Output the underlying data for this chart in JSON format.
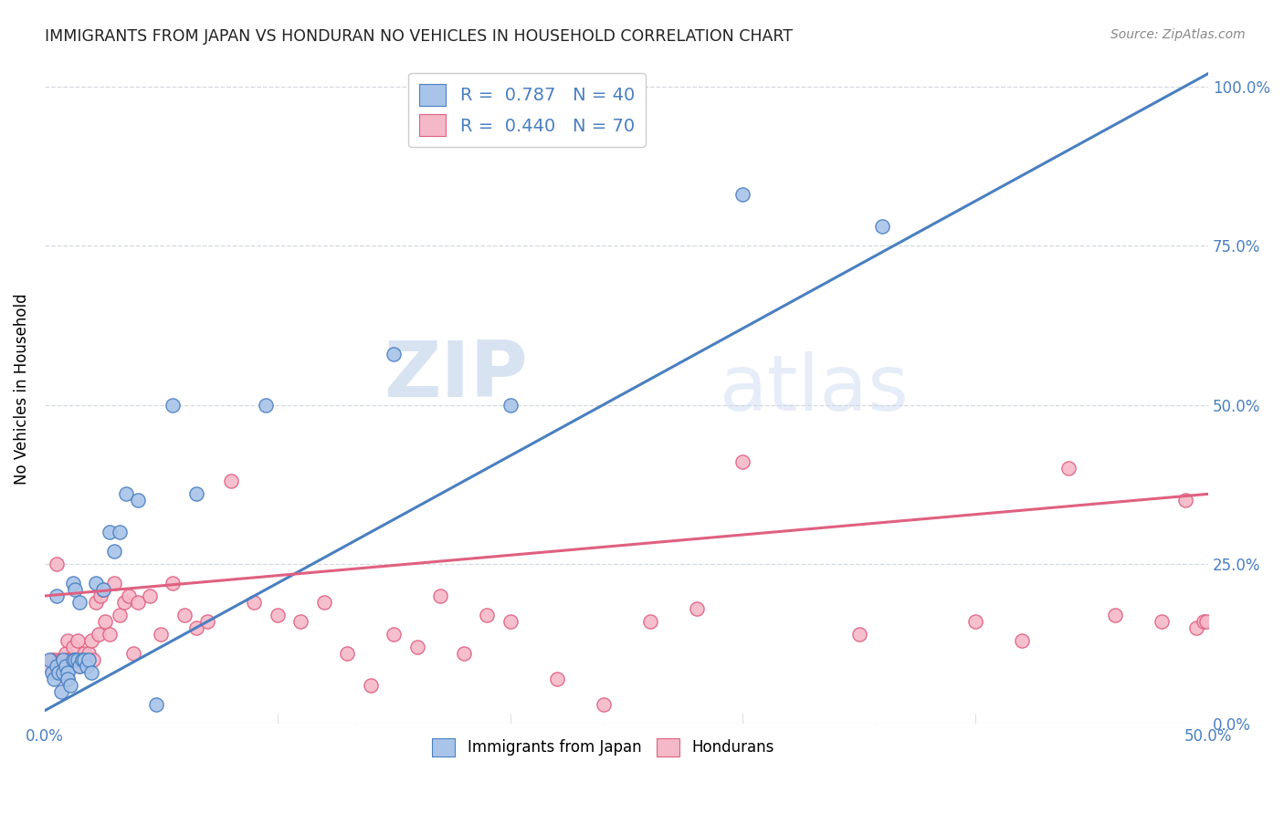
{
  "title": "IMMIGRANTS FROM JAPAN VS HONDURAN NO VEHICLES IN HOUSEHOLD CORRELATION CHART",
  "source": "Source: ZipAtlas.com",
  "ylabel": "No Vehicles in Household",
  "xlim": [
    0.0,
    0.5
  ],
  "ylim": [
    0.0,
    1.05
  ],
  "blue_r": 0.787,
  "blue_n": 40,
  "pink_r": 0.44,
  "pink_n": 70,
  "blue_color": "#A8C4E8",
  "pink_color": "#F5B8C8",
  "blue_line_color": "#4A7FC1",
  "pink_line_color": "#E06080",
  "watermark_zip": "ZIP",
  "watermark_atlas": "atlas",
  "legend_items": [
    "Immigrants from Japan",
    "Hondurans"
  ],
  "blue_line_x0": 0.0,
  "blue_line_y0": 0.02,
  "blue_line_x1": 0.5,
  "blue_line_y1": 1.02,
  "pink_line_x0": 0.0,
  "pink_line_y0": 0.2,
  "pink_line_x1": 0.5,
  "pink_line_y1": 0.36,
  "blue_scatter_x": [
    0.002,
    0.003,
    0.004,
    0.005,
    0.005,
    0.006,
    0.007,
    0.008,
    0.008,
    0.009,
    0.01,
    0.01,
    0.011,
    0.012,
    0.012,
    0.013,
    0.013,
    0.014,
    0.015,
    0.015,
    0.016,
    0.017,
    0.018,
    0.019,
    0.02,
    0.022,
    0.025,
    0.028,
    0.03,
    0.032,
    0.035,
    0.04,
    0.048,
    0.055,
    0.065,
    0.095,
    0.15,
    0.2,
    0.3,
    0.36
  ],
  "blue_scatter_y": [
    0.1,
    0.08,
    0.07,
    0.09,
    0.2,
    0.08,
    0.05,
    0.08,
    0.1,
    0.09,
    0.08,
    0.07,
    0.06,
    0.1,
    0.22,
    0.1,
    0.21,
    0.1,
    0.09,
    0.19,
    0.1,
    0.1,
    0.09,
    0.1,
    0.08,
    0.22,
    0.21,
    0.3,
    0.27,
    0.3,
    0.36,
    0.35,
    0.03,
    0.5,
    0.36,
    0.5,
    0.58,
    0.5,
    0.83,
    0.78
  ],
  "pink_scatter_x": [
    0.002,
    0.003,
    0.004,
    0.005,
    0.005,
    0.006,
    0.007,
    0.008,
    0.009,
    0.01,
    0.01,
    0.011,
    0.012,
    0.013,
    0.014,
    0.015,
    0.016,
    0.017,
    0.018,
    0.019,
    0.02,
    0.021,
    0.022,
    0.023,
    0.024,
    0.025,
    0.026,
    0.028,
    0.03,
    0.032,
    0.034,
    0.036,
    0.038,
    0.04,
    0.045,
    0.05,
    0.055,
    0.06,
    0.065,
    0.07,
    0.08,
    0.09,
    0.1,
    0.11,
    0.12,
    0.13,
    0.14,
    0.15,
    0.16,
    0.17,
    0.18,
    0.19,
    0.2,
    0.22,
    0.24,
    0.26,
    0.28,
    0.3,
    0.35,
    0.4,
    0.42,
    0.44,
    0.46,
    0.48,
    0.49,
    0.495,
    0.498,
    0.499,
    0.005,
    0.01
  ],
  "pink_scatter_y": [
    0.09,
    0.1,
    0.1,
    0.25,
    0.09,
    0.1,
    0.1,
    0.1,
    0.11,
    0.1,
    0.13,
    0.1,
    0.12,
    0.1,
    0.13,
    0.09,
    0.1,
    0.11,
    0.1,
    0.11,
    0.13,
    0.1,
    0.19,
    0.14,
    0.2,
    0.21,
    0.16,
    0.14,
    0.22,
    0.17,
    0.19,
    0.2,
    0.11,
    0.19,
    0.2,
    0.14,
    0.22,
    0.17,
    0.15,
    0.16,
    0.38,
    0.19,
    0.17,
    0.16,
    0.19,
    0.11,
    0.06,
    0.14,
    0.12,
    0.2,
    0.11,
    0.17,
    0.16,
    0.07,
    0.03,
    0.16,
    0.18,
    0.41,
    0.14,
    0.16,
    0.13,
    0.4,
    0.17,
    0.16,
    0.35,
    0.15,
    0.16,
    0.16,
    0.08,
    0.07
  ]
}
